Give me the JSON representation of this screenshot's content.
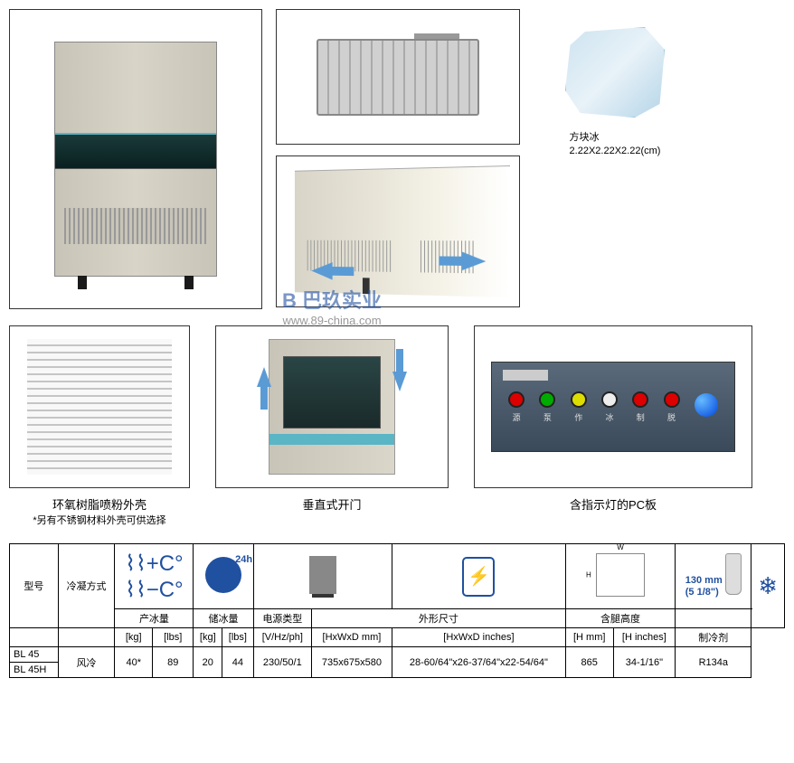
{
  "ice": {
    "label": "方块冰",
    "dims": "2.22X2.22X2.22(cm)"
  },
  "watermark": {
    "logo": "巴玖实业",
    "url": "www.89-china.com"
  },
  "captions": {
    "shell": "环氧树脂喷粉外壳",
    "shell_sub": "*另有不锈钢材料外壳可供选择",
    "door": "垂直式开门",
    "pcb": "含指示灯的PC板"
  },
  "pcb_leds": [
    {
      "color": "#d00",
      "ch": "源"
    },
    {
      "color": "#0a0",
      "ch": "泵"
    },
    {
      "color": "#dd0",
      "ch": "作"
    },
    {
      "color": "#eee",
      "ch": "冰"
    },
    {
      "color": "#d00",
      "ch": "制"
    },
    {
      "color": "#d00",
      "ch": "脱"
    }
  ],
  "table": {
    "leg_label_mm": "130 mm",
    "leg_label_in": "(5 1/8\")",
    "headers": {
      "model": "型号",
      "cooling": "冷凝方式",
      "ice_prod": "产冰量",
      "ice_store": "储冰量",
      "power": "电源类型",
      "dims": "外形尺寸",
      "leg": "含腿高度",
      "refr": "制冷剂",
      "kg": "[kg]",
      "lbs": "[lbs]",
      "vhz": "[V/Hz/ph]",
      "hwd_mm": "[HxWxD mm]",
      "hwd_in": "[HxWxD inches]",
      "h_mm": "[H mm]",
      "h_in": "[H inches]"
    },
    "rows": [
      {
        "model": "BL 45",
        "cooling": "风冷",
        "prod_kg": "40*",
        "prod_lbs": "89",
        "store_kg": "20",
        "store_lbs": "44",
        "power": "230/50/1",
        "dim_mm": "735x675x580",
        "dim_in": "28-60/64\"x26-37/64\"x22-54/64\"",
        "leg_mm": "865",
        "leg_in": "34-1/16\"",
        "refr": "R134a"
      },
      {
        "model": "BL 45H"
      }
    ]
  }
}
